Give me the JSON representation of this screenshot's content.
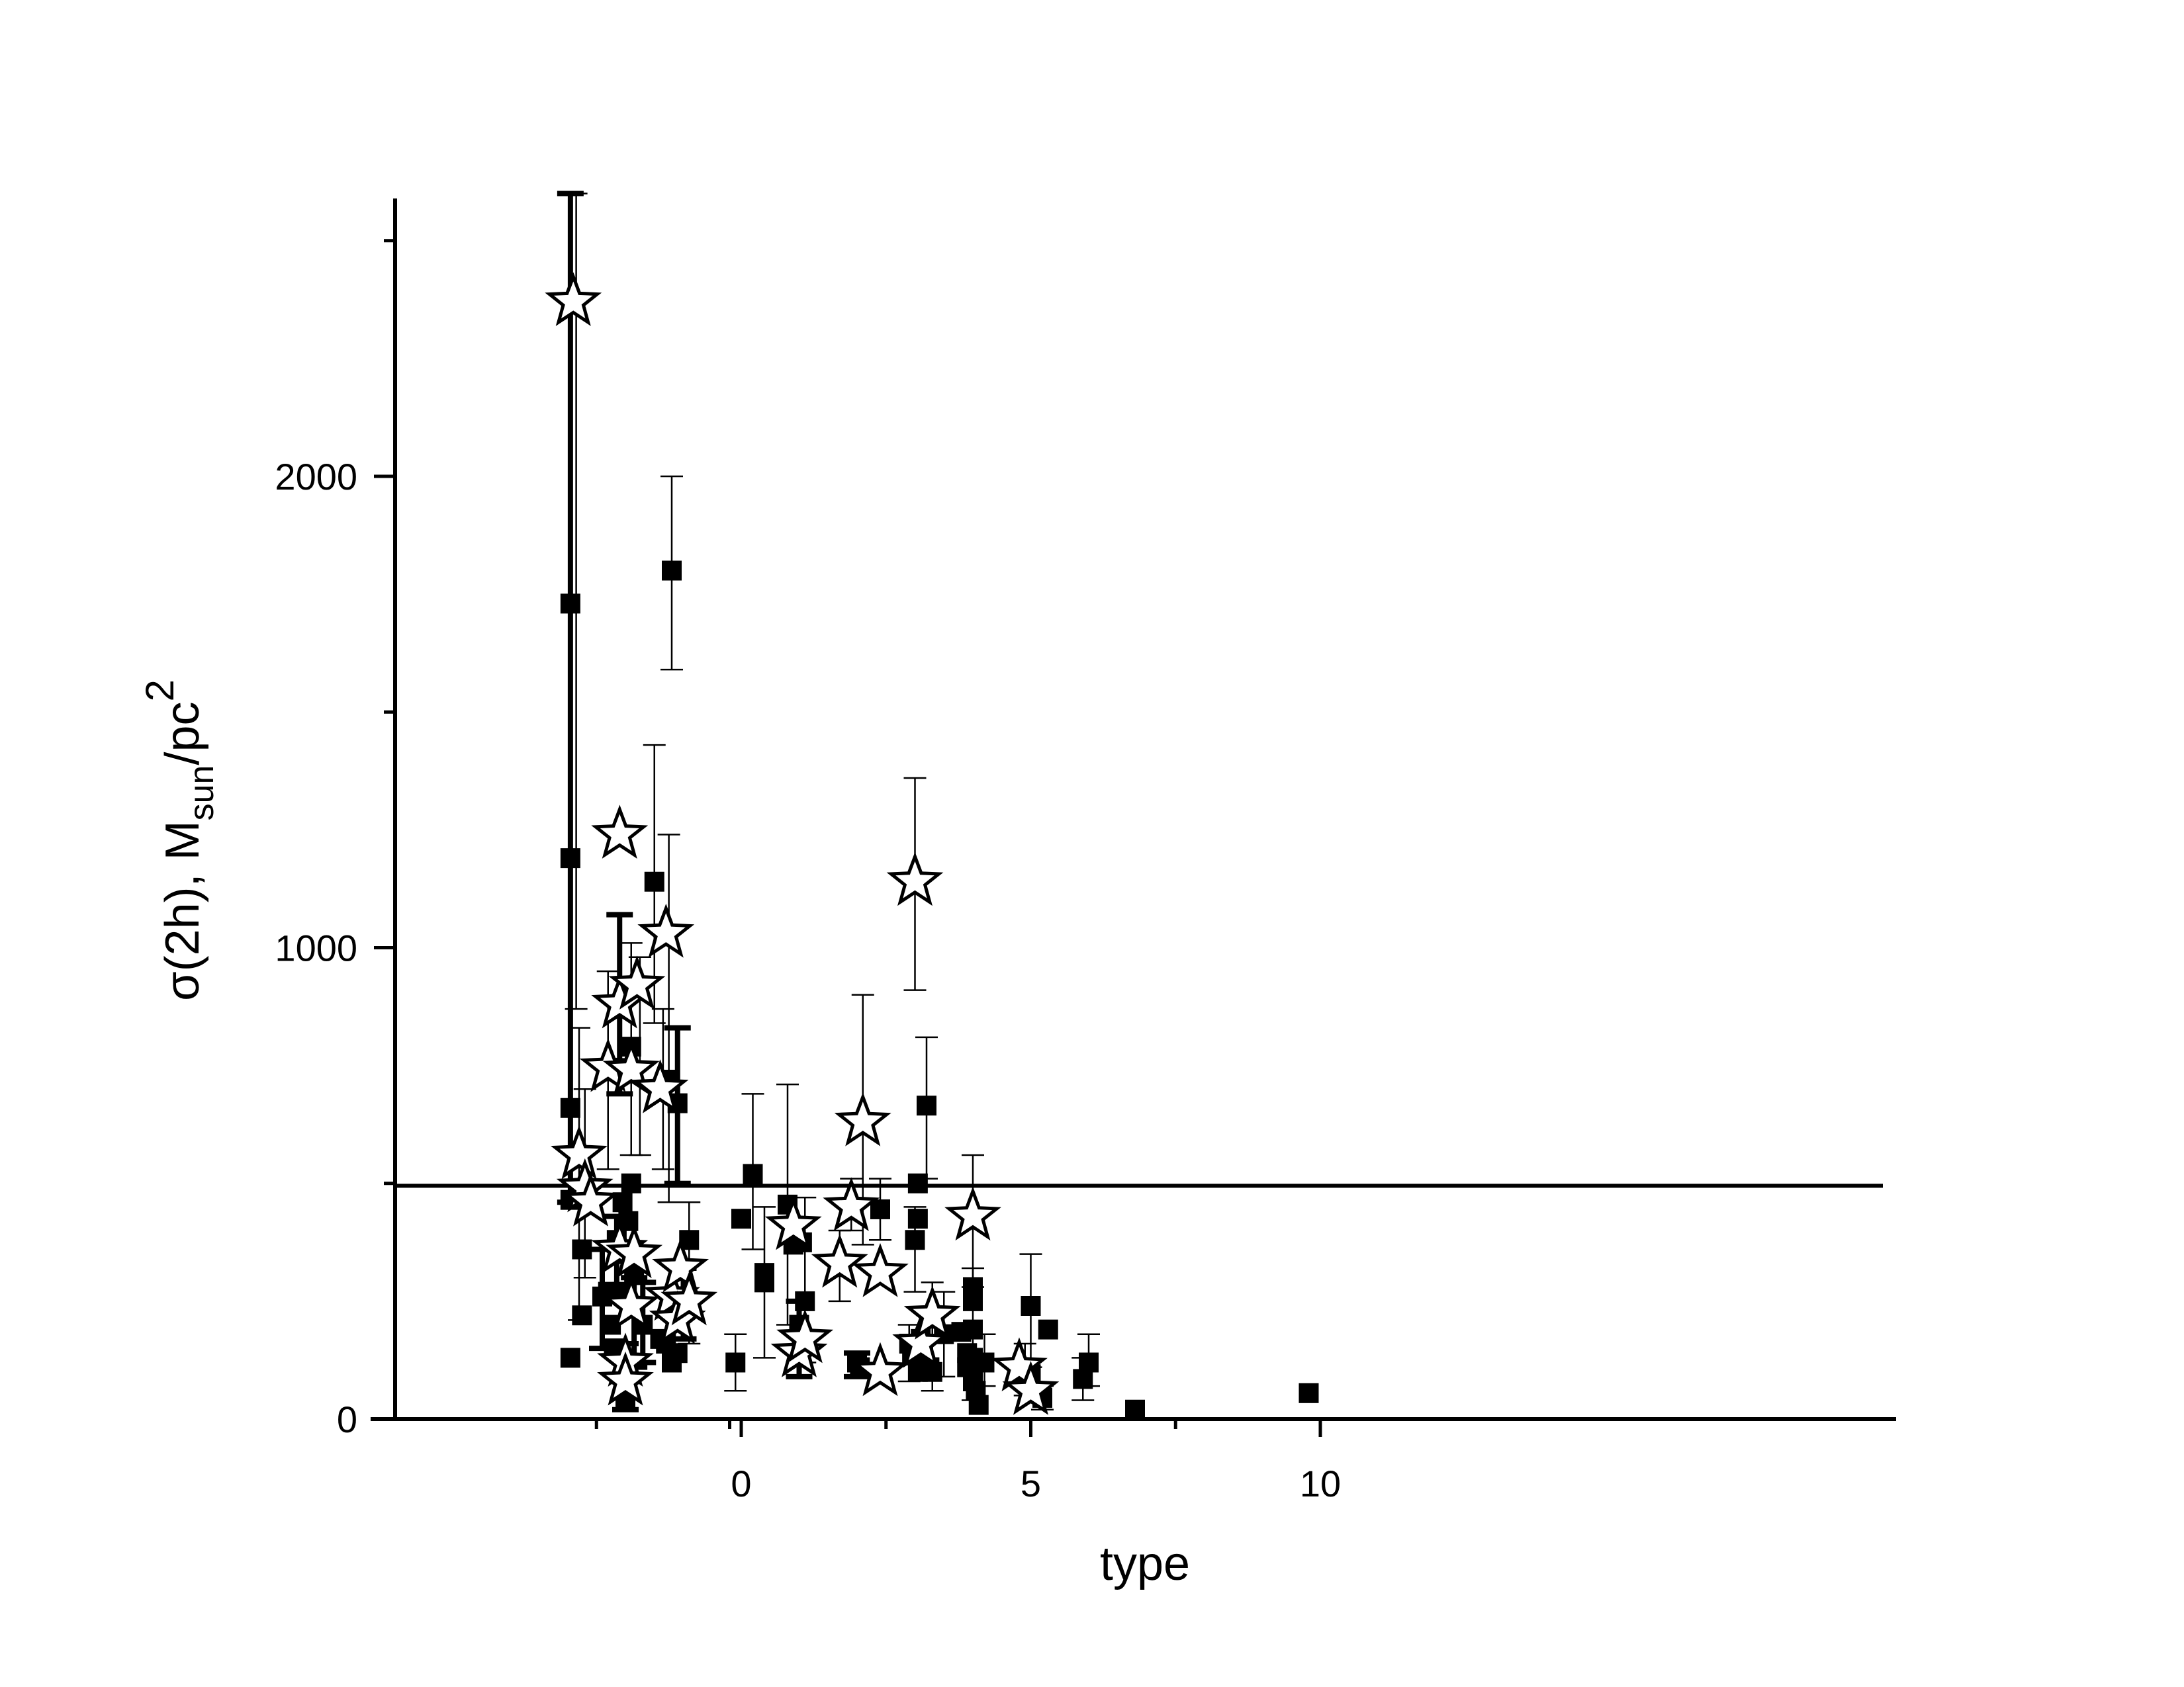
{
  "chart_data": {
    "type": "scatter",
    "xlabel": "type",
    "ylabel": {
      "prefix": "σ(2h), M",
      "sub": "sun",
      "mid": "/pc",
      "sup": "2"
    },
    "xlim": [
      -3.2,
      10
    ],
    "ylim": [
      0,
      2600
    ],
    "xticks": [
      0,
      5,
      10
    ],
    "xticks_minor": [
      -2.5,
      -0.2,
      2.5,
      7.5
    ],
    "yticks": [
      0,
      1000,
      2000
    ],
    "yticks_minor": [
      500,
      1500,
      2500
    ],
    "grid": false,
    "legend": "none",
    "reference_line": {
      "y": 495
    },
    "series": [
      {
        "marker": "filled-square",
        "points": [
          {
            "x": -2.95,
            "y": 1730
          },
          {
            "x": -2.95,
            "y": 1190
          },
          {
            "x": -2.95,
            "y": 660
          },
          {
            "x": -2.95,
            "y": 465
          },
          {
            "x": -2.95,
            "y": 130
          },
          {
            "x": -2.75,
            "y": 220
          },
          {
            "x": -2.75,
            "y": 360
          },
          {
            "x": -2.4,
            "y": 260
          },
          {
            "x": -2.3,
            "y": 270
          },
          {
            "x": -2.25,
            "y": 200
          },
          {
            "x": -2.2,
            "y": 150
          },
          {
            "x": -2.15,
            "y": 380
          },
          {
            "x": -2.1,
            "y": 350
          },
          {
            "x": -2.05,
            "y": 460
          },
          {
            "x": -2.05,
            "y": 270
          },
          {
            "x": -2.0,
            "y": 100
          },
          {
            "x": -2.0,
            "y": 40
          },
          {
            "x": -1.95,
            "y": 420
          },
          {
            "x": -1.9,
            "y": 790
          },
          {
            "x": -1.9,
            "y": 500
          },
          {
            "x": -1.85,
            "y": 310
          },
          {
            "x": -1.7,
            "y": 200
          },
          {
            "x": -1.5,
            "y": 1140
          },
          {
            "x": -1.4,
            "y": 170
          },
          {
            "x": -1.3,
            "y": 160
          },
          {
            "x": -1.3,
            "y": 720
          },
          {
            "x": -1.2,
            "y": 1800
          },
          {
            "x": -1.2,
            "y": 120
          },
          {
            "x": -1.1,
            "y": 670
          },
          {
            "x": -1.1,
            "y": 140
          },
          {
            "x": -0.9,
            "y": 380
          },
          {
            "x": -0.1,
            "y": 120
          },
          {
            "x": 0.0,
            "y": 425
          },
          {
            "x": 0.2,
            "y": 520
          },
          {
            "x": 0.4,
            "y": 310
          },
          {
            "x": 0.4,
            "y": 290
          },
          {
            "x": 0.8,
            "y": 455
          },
          {
            "x": 0.9,
            "y": 370
          },
          {
            "x": 1.0,
            "y": 200
          },
          {
            "x": 1.05,
            "y": 375
          },
          {
            "x": 1.1,
            "y": 250
          },
          {
            "x": 2.0,
            "y": 120
          },
          {
            "x": 2.05,
            "y": 110
          },
          {
            "x": 2.4,
            "y": 445
          },
          {
            "x": 2.9,
            "y": 160
          },
          {
            "x": 2.95,
            "y": 135
          },
          {
            "x": 3.0,
            "y": 380
          },
          {
            "x": 3.05,
            "y": 100
          },
          {
            "x": 3.05,
            "y": 425
          },
          {
            "x": 3.05,
            "y": 500
          },
          {
            "x": 3.1,
            "y": 170
          },
          {
            "x": 3.15,
            "y": 120
          },
          {
            "x": 3.2,
            "y": 665
          },
          {
            "x": 3.25,
            "y": 110
          },
          {
            "x": 3.3,
            "y": 100
          },
          {
            "x": 3.5,
            "y": 180
          },
          {
            "x": 3.8,
            "y": 185
          },
          {
            "x": 3.9,
            "y": 140
          },
          {
            "x": 3.9,
            "y": 110
          },
          {
            "x": 4.0,
            "y": 280
          },
          {
            "x": 4.0,
            "y": 250
          },
          {
            "x": 4.0,
            "y": 190
          },
          {
            "x": 4.0,
            "y": 130
          },
          {
            "x": 4.0,
            "y": 80
          },
          {
            "x": 4.05,
            "y": 60
          },
          {
            "x": 4.1,
            "y": 30
          },
          {
            "x": 4.2,
            "y": 120
          },
          {
            "x": 4.9,
            "y": 80
          },
          {
            "x": 5.0,
            "y": 240
          },
          {
            "x": 5.0,
            "y": 95
          },
          {
            "x": 5.2,
            "y": 45
          },
          {
            "x": 5.3,
            "y": 190
          },
          {
            "x": 5.9,
            "y": 85
          },
          {
            "x": 6.0,
            "y": 120
          },
          {
            "x": 6.8,
            "y": 20
          },
          {
            "x": 9.8,
            "y": 55
          }
        ]
      },
      {
        "marker": "open-star",
        "points": [
          {
            "x": -2.9,
            "y": 2370
          },
          {
            "x": -2.8,
            "y": 560
          },
          {
            "x": -2.7,
            "y": 490
          },
          {
            "x": -2.6,
            "y": 460
          },
          {
            "x": -2.3,
            "y": 745
          },
          {
            "x": -2.1,
            "y": 1240
          },
          {
            "x": -2.1,
            "y": 880
          },
          {
            "x": -2.1,
            "y": 360
          },
          {
            "x": -2.0,
            "y": 120
          },
          {
            "x": -2.0,
            "y": 80
          },
          {
            "x": -1.9,
            "y": 740
          },
          {
            "x": -1.9,
            "y": 240
          },
          {
            "x": -1.85,
            "y": 350
          },
          {
            "x": -1.8,
            "y": 920
          },
          {
            "x": -1.4,
            "y": 700
          },
          {
            "x": -1.3,
            "y": 1030
          },
          {
            "x": -1.2,
            "y": 260
          },
          {
            "x": -1.1,
            "y": 210
          },
          {
            "x": -1.05,
            "y": 320
          },
          {
            "x": -0.9,
            "y": 250
          },
          {
            "x": 0.9,
            "y": 410
          },
          {
            "x": 1.0,
            "y": 140
          },
          {
            "x": 1.1,
            "y": 170
          },
          {
            "x": 1.7,
            "y": 330
          },
          {
            "x": 1.9,
            "y": 450
          },
          {
            "x": 2.1,
            "y": 630
          },
          {
            "x": 2.4,
            "y": 100
          },
          {
            "x": 2.4,
            "y": 310
          },
          {
            "x": 3.0,
            "y": 1140
          },
          {
            "x": 3.1,
            "y": 160
          },
          {
            "x": 3.3,
            "y": 220
          },
          {
            "x": 4.0,
            "y": 430
          },
          {
            "x": 4.8,
            "y": 110
          },
          {
            "x": 5.0,
            "y": 60
          }
        ]
      }
    ],
    "error_bars": [
      {
        "x": -2.95,
        "low": 460,
        "high": 2600,
        "bold": true
      },
      {
        "x": -2.85,
        "low": 870,
        "high": 2600,
        "bold": false
      },
      {
        "x": -2.8,
        "low": 210,
        "high": 830,
        "bold": false
      },
      {
        "x": -2.7,
        "low": 300,
        "high": 700,
        "bold": false
      },
      {
        "x": -2.4,
        "low": 150,
        "high": 360,
        "bold": true
      },
      {
        "x": -2.3,
        "low": 530,
        "high": 950,
        "bold": false
      },
      {
        "x": -2.15,
        "low": 250,
        "high": 430,
        "bold": true
      },
      {
        "x": -2.1,
        "low": 690,
        "high": 1070,
        "bold": true
      },
      {
        "x": -2.0,
        "low": 20,
        "high": 160,
        "bold": true
      },
      {
        "x": -1.9,
        "low": 560,
        "high": 1010,
        "bold": false
      },
      {
        "x": -1.85,
        "low": 110,
        "high": 300,
        "bold": true
      },
      {
        "x": -1.75,
        "low": 560,
        "high": 980,
        "bold": false
      },
      {
        "x": -1.7,
        "low": 120,
        "high": 290,
        "bold": true
      },
      {
        "x": -1.5,
        "low": 840,
        "high": 1430,
        "bold": false
      },
      {
        "x": -1.35,
        "low": 530,
        "high": 870,
        "bold": false
      },
      {
        "x": -1.25,
        "low": 460,
        "high": 1240,
        "bold": false
      },
      {
        "x": -1.2,
        "low": 1590,
        "high": 2000,
        "bold": false
      },
      {
        "x": -1.1,
        "low": 500,
        "high": 830,
        "bold": true
      },
      {
        "x": -1.0,
        "low": 170,
        "high": 320,
        "bold": true
      },
      {
        "x": -0.9,
        "low": 160,
        "high": 460,
        "bold": false
      },
      {
        "x": -0.1,
        "low": 60,
        "high": 180,
        "bold": false
      },
      {
        "x": 0.2,
        "low": 360,
        "high": 690,
        "bold": false
      },
      {
        "x": 0.4,
        "low": 130,
        "high": 450,
        "bold": false
      },
      {
        "x": 0.8,
        "low": 200,
        "high": 710,
        "bold": false
      },
      {
        "x": 1.0,
        "low": 90,
        "high": 250,
        "bold": true
      },
      {
        "x": 1.1,
        "low": 120,
        "high": 470,
        "bold": false
      },
      {
        "x": 1.7,
        "low": 250,
        "high": 400,
        "bold": false
      },
      {
        "x": 1.9,
        "low": 400,
        "high": 510,
        "bold": false
      },
      {
        "x": 2.0,
        "low": 90,
        "high": 140,
        "bold": true
      },
      {
        "x": 2.1,
        "low": 370,
        "high": 900,
        "bold": false
      },
      {
        "x": 2.4,
        "low": 380,
        "high": 510,
        "bold": false
      },
      {
        "x": 2.9,
        "low": 80,
        "high": 200,
        "bold": false
      },
      {
        "x": 3.0,
        "low": 910,
        "high": 1360,
        "bold": false
      },
      {
        "x": 3.0,
        "low": 270,
        "high": 450,
        "bold": false
      },
      {
        "x": 3.2,
        "low": 510,
        "high": 810,
        "bold": false
      },
      {
        "x": 3.3,
        "low": 60,
        "high": 290,
        "bold": false
      },
      {
        "x": 3.5,
        "low": 90,
        "high": 270,
        "bold": false
      },
      {
        "x": 4.0,
        "low": 280,
        "high": 560,
        "bold": false
      },
      {
        "x": 4.0,
        "low": 40,
        "high": 320,
        "bold": false
      },
      {
        "x": 4.2,
        "low": 70,
        "high": 180,
        "bold": false
      },
      {
        "x": 4.9,
        "low": 50,
        "high": 160,
        "bold": false
      },
      {
        "x": 5.0,
        "low": 110,
        "high": 350,
        "bold": false
      },
      {
        "x": 5.2,
        "low": 20,
        "high": 70,
        "bold": false
      },
      {
        "x": 5.9,
        "low": 40,
        "high": 130,
        "bold": false
      },
      {
        "x": 6.0,
        "low": 70,
        "high": 180,
        "bold": false
      }
    ]
  }
}
